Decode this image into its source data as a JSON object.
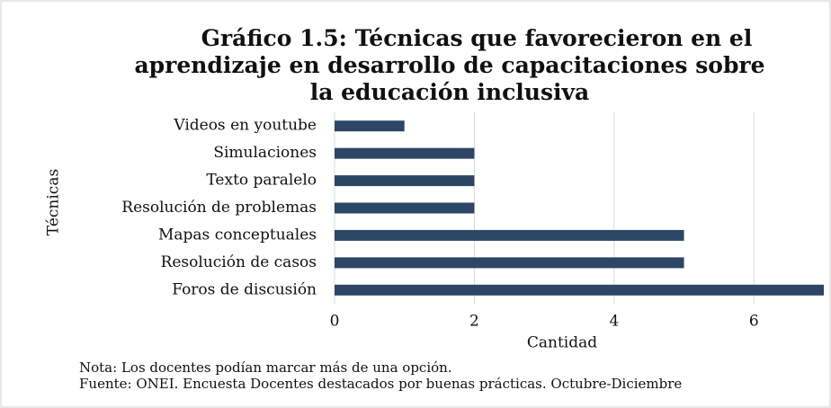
{
  "chart_data": {
    "type": "bar",
    "orientation": "horizontal",
    "title": "Gráfico 1.5: Técnicas que favorecieron en el aprendizaje en desarrollo de capacitaciones sobre la educación inclusiva",
    "categories": [
      "Videos en youtube",
      "Simulaciones",
      "Texto paralelo",
      "Resolución de problemas",
      "Mapas conceptuales",
      "Resolución de casos",
      "Foros de discusión"
    ],
    "values": [
      1,
      2,
      2,
      2,
      5,
      5,
      7
    ],
    "color": "#2c4666",
    "xlim": [
      0,
      7
    ],
    "xticks": [
      0,
      2,
      4,
      6
    ],
    "grid": true,
    "xlabel": "Cantidad",
    "ylabel": "Técnicas",
    "notes": [
      "Nota: Los docentes podían marcar más de una opción.",
      "Fuente: ONEI. Encuesta Docentes destacados por buenas prácticas. Octubre-Diciembre"
    ]
  }
}
